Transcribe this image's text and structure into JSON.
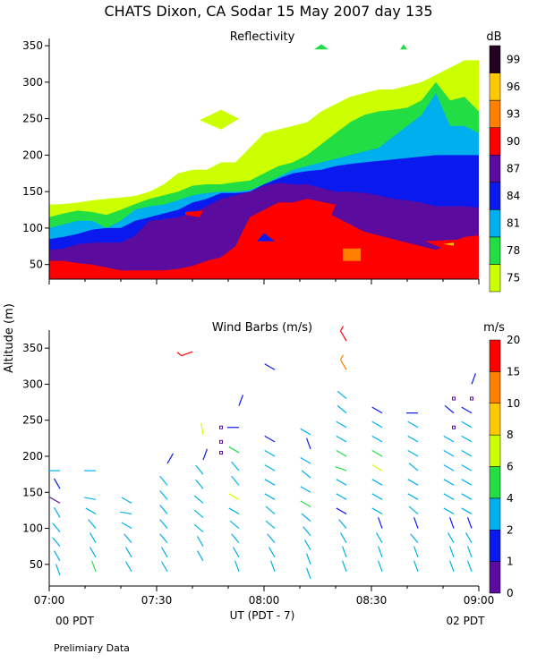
{
  "figure": {
    "title": "CHATS Dixon, CA  Sodar  15 May 2007  day 135",
    "shared_ylabel": "Altitude (m)",
    "xlabel": "UT  (PDT - 7)",
    "local_time_left": "00 PDT",
    "local_time_right": "02 PDT",
    "footnote": "Prelimiary Data"
  },
  "chart_data": [
    {
      "type": "heatmap",
      "title": "Reflectivity",
      "x": {
        "ticks": [
          "07:00",
          "07:30",
          "08:00",
          "08:30",
          "09:00"
        ],
        "range": [
          "07:00",
          "09:00"
        ]
      },
      "y": {
        "ticks": [
          50,
          100,
          150,
          200,
          250,
          300,
          350
        ],
        "range": [
          30,
          355
        ]
      },
      "colorbar": {
        "unit": "dB",
        "labels": [
          75,
          78,
          81,
          84,
          87,
          90,
          93,
          96,
          99
        ],
        "colors": [
          "#ccff00",
          "#22dd44",
          "#00b0ee",
          "#0a1aee",
          "#5b0c9e",
          "#ff0000",
          "#ff7f00",
          "#ffc800",
          "#220022"
        ]
      },
      "contour_levels": [
        {
          "level": 75,
          "top_height": [
            132,
            133,
            135,
            138,
            140,
            142,
            144,
            150,
            160,
            175,
            180,
            180,
            190,
            190,
            210,
            230,
            235,
            240,
            245,
            260,
            270,
            280,
            285,
            290,
            290,
            295,
            300,
            310,
            320,
            330,
            330
          ],
          "note": "columns at 4-min intervals 07:00 to 09:00"
        },
        {
          "level": 78,
          "top_height": [
            115,
            120,
            124,
            122,
            118,
            125,
            133,
            140,
            145,
            150,
            158,
            160,
            160,
            163,
            165,
            175,
            185,
            190,
            200,
            215,
            230,
            245,
            255,
            260,
            262,
            265,
            275,
            300,
            275,
            280,
            260
          ]
        },
        {
          "level": 81,
          "top_height": [
            100,
            105,
            110,
            110,
            100,
            110,
            125,
            130,
            132,
            138,
            145,
            148,
            150,
            150,
            152,
            160,
            170,
            180,
            185,
            190,
            195,
            200,
            205,
            210,
            225,
            240,
            255,
            285,
            240,
            240,
            230
          ]
        },
        {
          "level": 84,
          "top_height": [
            85,
            88,
            92,
            98,
            100,
            100,
            110,
            115,
            120,
            125,
            135,
            140,
            148,
            148,
            150,
            160,
            168,
            175,
            178,
            180,
            185,
            188,
            190,
            192,
            194,
            196,
            198,
            200,
            200,
            200,
            200
          ]
        },
        {
          "level": 87,
          "top_height": [
            70,
            72,
            78,
            80,
            80,
            80,
            90,
            110,
            112,
            115,
            120,
            130,
            140,
            145,
            150,
            158,
            162,
            160,
            160,
            155,
            150,
            150,
            148,
            145,
            140,
            138,
            135,
            130,
            130,
            130,
            128
          ]
        },
        {
          "level": 90,
          "top_height": [
            55,
            55,
            52,
            50,
            46,
            42,
            42,
            42,
            42,
            44,
            48,
            55,
            60,
            75,
            115,
            125,
            135,
            135,
            130,
            125,
            115,
            105,
            95,
            90,
            85,
            80,
            75,
            70,
            80,
            88,
            90
          ]
        }
      ],
      "patches": [
        {
          "level": 75,
          "label": "isolated cell near 07:45, 235-260 m"
        },
        {
          "level": 90,
          "label": "cell 08:05-08:20, 105-140 m"
        },
        {
          "level": 93,
          "label": "cell near 08:25, 55-75 m"
        },
        {
          "level": 84,
          "label": "cell near 08:00, 80-95 m"
        }
      ]
    },
    {
      "type": "scatter",
      "title": "Wind Barbs (m/s)",
      "x": {
        "ticks": [
          "07:00",
          "07:30",
          "08:00",
          "08:30",
          "09:00"
        ],
        "range": [
          "07:00",
          "09:00"
        ]
      },
      "y": {
        "ticks": [
          50,
          100,
          150,
          200,
          250,
          300,
          350
        ],
        "range": [
          20,
          370
        ]
      },
      "colorbar": {
        "unit": "m/s",
        "labels": [
          0,
          1,
          2,
          4,
          6,
          8,
          10,
          15,
          20
        ],
        "colors": [
          "#5b0c9e",
          "#0a1aee",
          "#00b0ee",
          "#22dd44",
          "#ccff00",
          "#ffc800",
          "#ff7f00",
          "#ff0000"
        ]
      },
      "barbs": [
        {
          "time": "07:03",
          "heights": [
            180,
            155,
            135,
            115,
            95,
            75,
            55,
            35
          ],
          "speeds": [
            3,
            1,
            0.5,
            2,
            3,
            3,
            2,
            3
          ],
          "dirs": [
            270,
            330,
            300,
            330,
            320,
            320,
            330,
            340
          ]
        },
        {
          "time": "07:13",
          "heights": [
            180,
            140,
            120,
            100,
            80,
            60,
            40
          ],
          "speeds": [
            2,
            2,
            2,
            2,
            3,
            3,
            4
          ],
          "dirs": [
            270,
            280,
            300,
            320,
            330,
            330,
            340
          ]
        },
        {
          "time": "07:23",
          "heights": [
            135,
            120,
            100,
            80,
            60,
            40
          ],
          "speeds": [
            3,
            2,
            2,
            3,
            3,
            3
          ],
          "dirs": [
            300,
            280,
            300,
            320,
            330,
            330
          ]
        },
        {
          "time": "07:33",
          "heights": [
            190,
            160,
            140,
            120,
            100,
            80,
            60,
            40
          ],
          "speeds": [
            1,
            2,
            2,
            2,
            3,
            3,
            2,
            2
          ],
          "dirs": [
            30,
            320,
            320,
            320,
            320,
            320,
            330,
            330
          ]
        },
        {
          "time": "07:40",
          "heights": [
            345
          ],
          "speeds": [
            20
          ],
          "dirs": [
            250
          ]
        },
        {
          "time": "07:43",
          "heights": [
            230,
            195,
            175,
            155,
            135,
            115,
            95,
            75,
            55
          ],
          "speeds": [
            6,
            1,
            3,
            3,
            3,
            2,
            2,
            2,
            3
          ],
          "dirs": [
            350,
            20,
            320,
            320,
            310,
            310,
            310,
            330,
            330
          ]
        },
        {
          "time": "07:48",
          "heights": [
            240,
            220,
            205
          ],
          "speeds": [
            0,
            0,
            0
          ],
          "dirs": [
            0,
            0,
            0
          ]
        },
        {
          "time": "07:53",
          "heights": [
            270,
            240,
            205,
            180,
            160,
            140,
            120,
            100,
            80,
            60,
            40
          ],
          "speeds": [
            1,
            1,
            4,
            2,
            3,
            6,
            3,
            2,
            2,
            2,
            3
          ],
          "dirs": [
            20,
            270,
            300,
            320,
            320,
            300,
            300,
            310,
            320,
            330,
            340
          ]
        },
        {
          "time": "08:03",
          "heights": [
            320,
            220,
            200,
            180,
            160,
            140,
            120,
            100,
            80,
            60,
            40
          ],
          "speeds": [
            1,
            1,
            3,
            3,
            3,
            3,
            3,
            2,
            2,
            3,
            3
          ],
          "dirs": [
            300,
            300,
            300,
            300,
            300,
            300,
            310,
            310,
            320,
            330,
            340
          ]
        },
        {
          "time": "08:13",
          "heights": [
            230,
            210,
            190,
            170,
            150,
            130,
            110,
            90,
            70,
            50,
            30
          ],
          "speeds": [
            2,
            1,
            3,
            3,
            3,
            4,
            3,
            2,
            2,
            2,
            3
          ],
          "dirs": [
            300,
            340,
            300,
            310,
            300,
            300,
            310,
            320,
            330,
            340,
            340
          ]
        },
        {
          "time": "08:23",
          "heights": [
            360,
            320,
            280,
            260,
            240,
            220,
            200,
            180,
            160,
            140,
            120,
            100,
            80,
            60,
            40
          ],
          "speeds": [
            20,
            10,
            2,
            3,
            3,
            3,
            4,
            4,
            3,
            3,
            1,
            2,
            2,
            2,
            3
          ],
          "dirs": [
            330,
            330,
            310,
            310,
            300,
            300,
            300,
            290,
            300,
            300,
            300,
            320,
            330,
            340,
            340
          ]
        },
        {
          "time": "08:33",
          "heights": [
            260,
            240,
            220,
            200,
            180,
            160,
            140,
            120,
            100,
            80,
            60,
            40
          ],
          "speeds": [
            1,
            2,
            3,
            4,
            6,
            3,
            3,
            3,
            1,
            2,
            2,
            3
          ],
          "dirs": [
            300,
            300,
            300,
            300,
            300,
            300,
            300,
            300,
            340,
            330,
            340,
            340
          ]
        },
        {
          "time": "08:43",
          "heights": [
            260,
            240,
            220,
            200,
            180,
            160,
            140,
            120,
            100,
            80,
            60,
            40
          ],
          "speeds": [
            1,
            2,
            3,
            3,
            3,
            3,
            3,
            3,
            1,
            2,
            3,
            3
          ],
          "dirs": [
            270,
            300,
            300,
            300,
            310,
            300,
            300,
            310,
            340,
            320,
            340,
            340
          ]
        },
        {
          "time": "08:53",
          "heights": [
            280,
            260,
            240,
            220,
            200,
            180,
            160,
            140,
            120,
            100,
            80,
            60,
            40
          ],
          "speeds": [
            0,
            1,
            0,
            3,
            3,
            3,
            3,
            3,
            3,
            1,
            2,
            3,
            3
          ],
          "dirs": [
            0,
            310,
            0,
            300,
            300,
            300,
            300,
            300,
            300,
            340,
            330,
            340,
            340
          ]
        },
        {
          "time": "08:58",
          "heights": [
            300,
            280,
            260,
            240,
            220,
            200,
            180,
            160,
            140,
            120,
            100,
            80,
            60,
            40
          ],
          "speeds": [
            1,
            0,
            1,
            2,
            3,
            3,
            3,
            3,
            3,
            3,
            1,
            2,
            3,
            3
          ],
          "dirs": [
            20,
            0,
            300,
            300,
            300,
            300,
            300,
            300,
            300,
            300,
            340,
            330,
            340,
            340
          ]
        }
      ]
    }
  ]
}
